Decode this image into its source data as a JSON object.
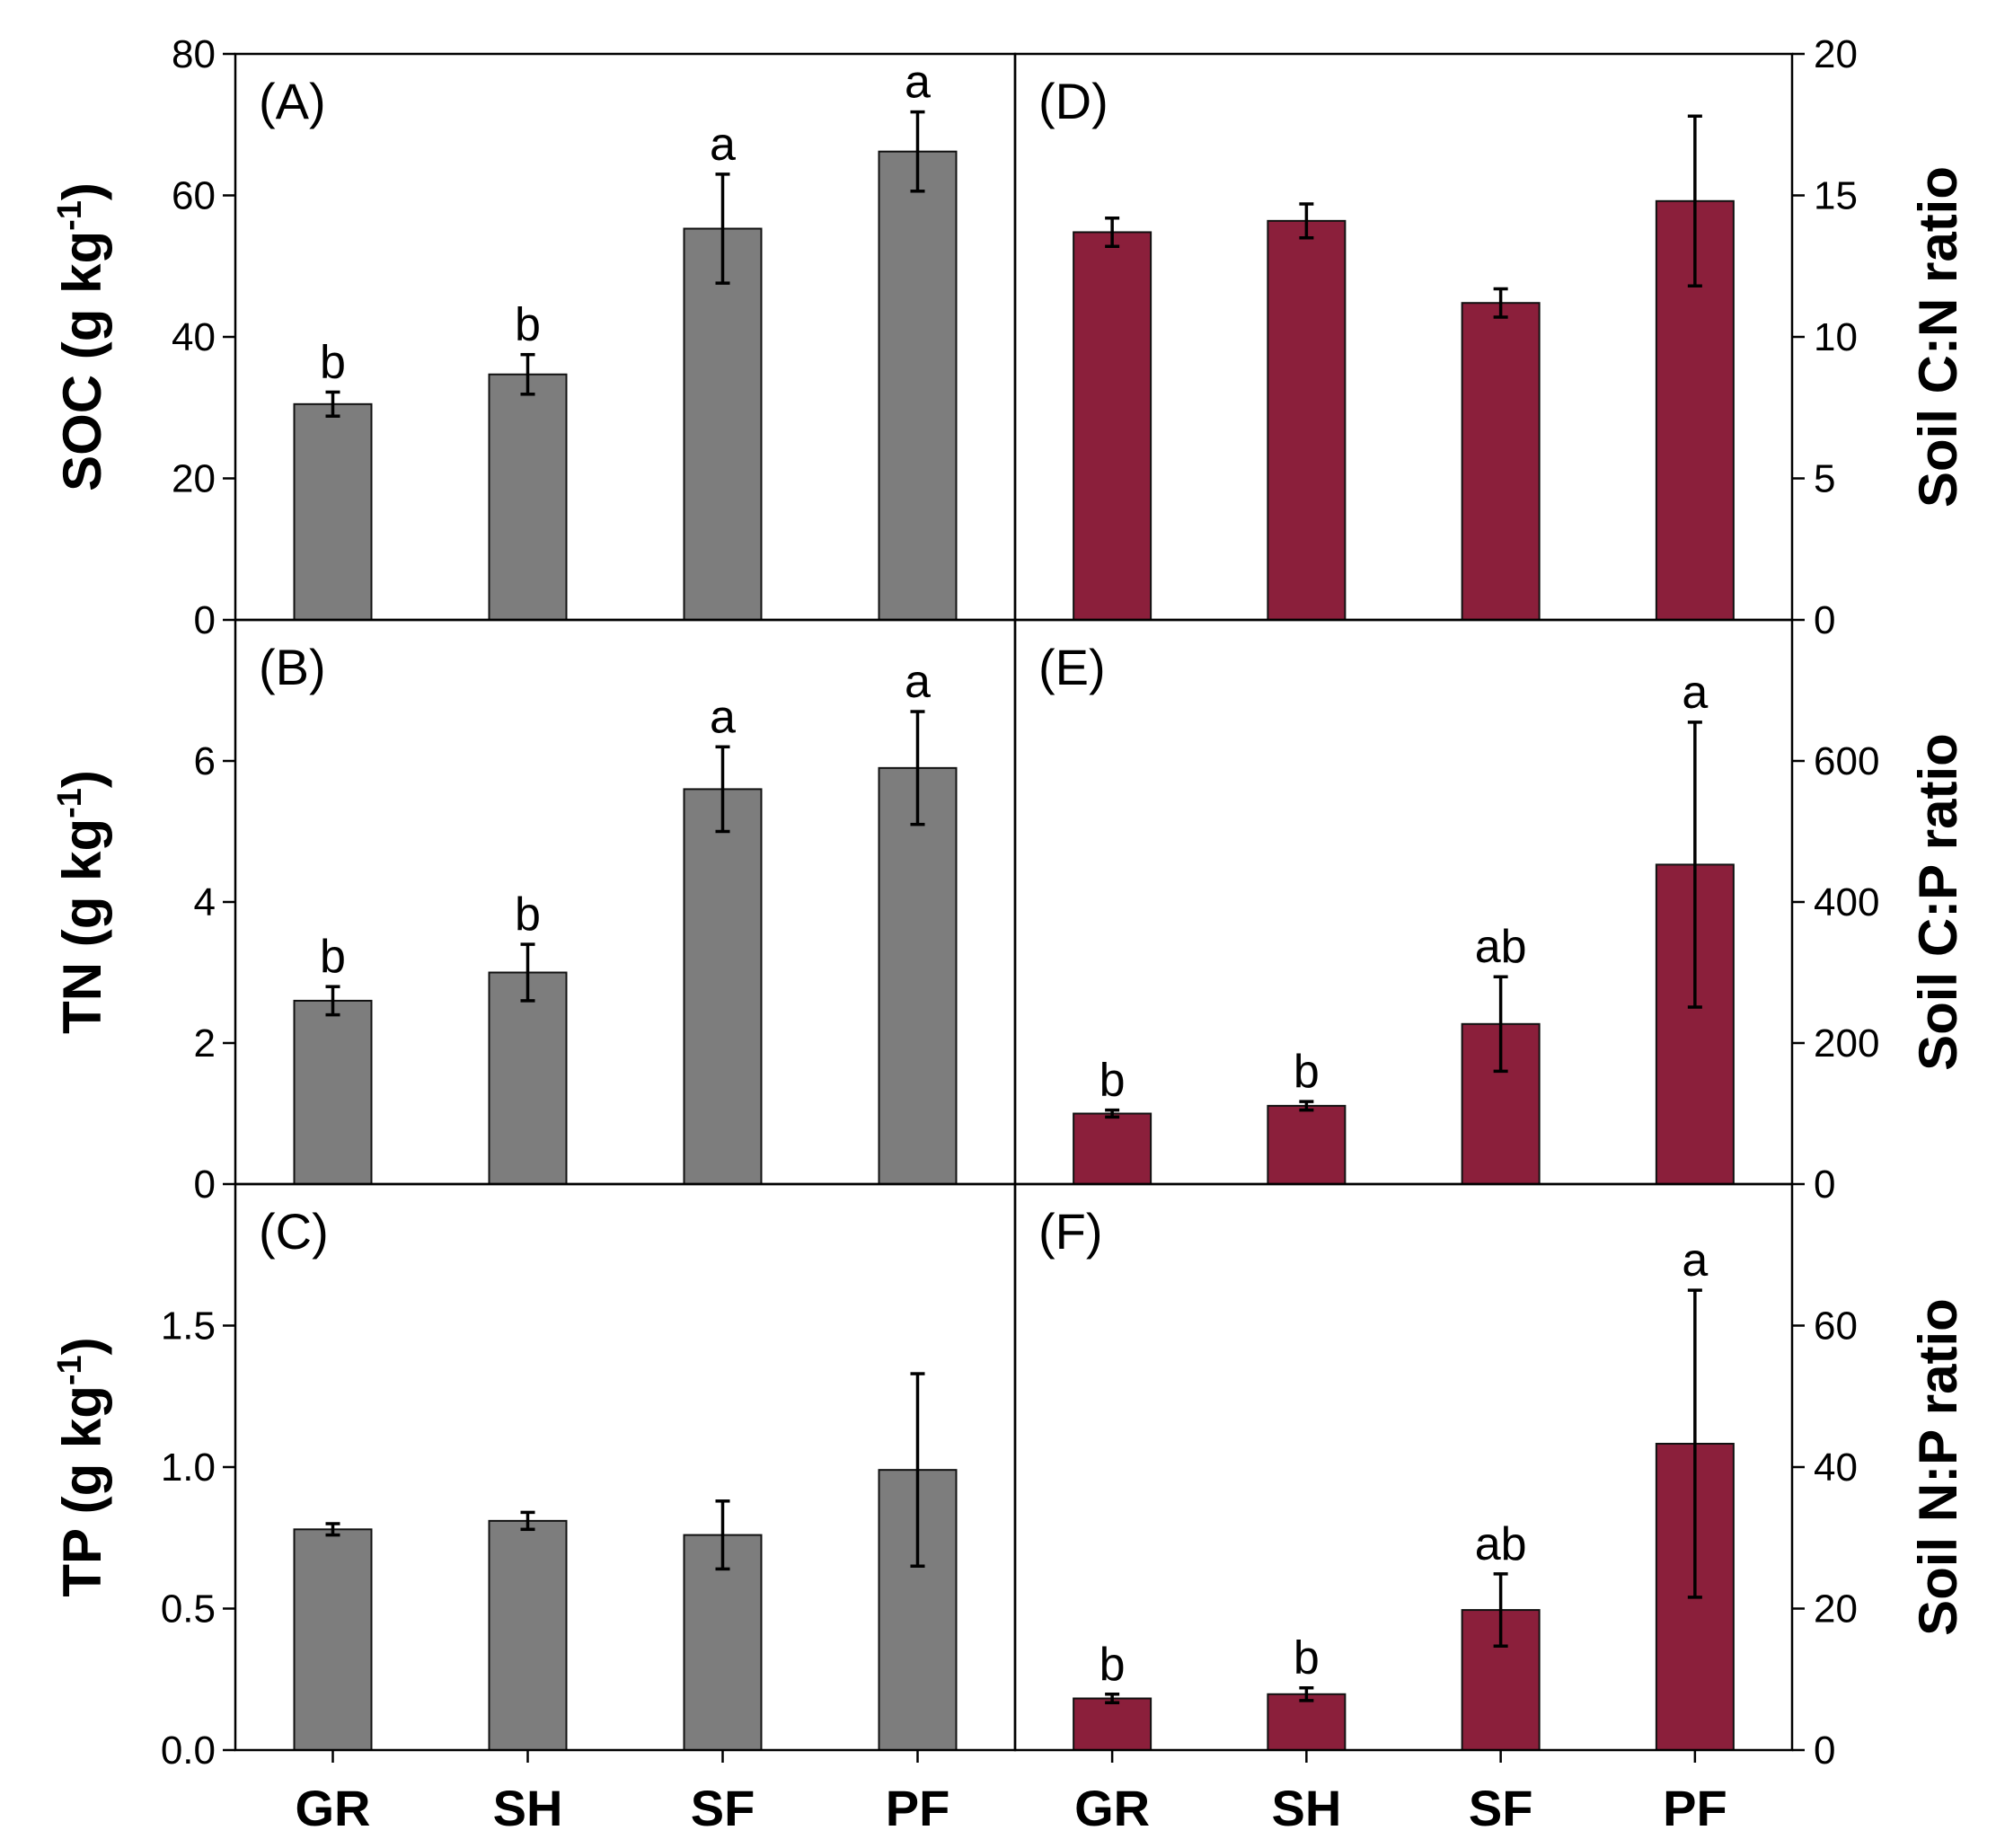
{
  "chart_data": [
    {
      "panel": "(A)",
      "type": "bar",
      "ylabel_main": "SOC (g kg",
      "ylabel_sup": "-1",
      "ylabel_close": ")",
      "ylim": [
        0,
        80
      ],
      "yticks": [
        "0",
        "20",
        "40",
        "60",
        "80"
      ],
      "categories": [
        "GR",
        "SH",
        "SF",
        "PF"
      ],
      "values": [
        30.5,
        34.7,
        55.3,
        66.2
      ],
      "errors": [
        1.7,
        2.8,
        7.7,
        5.6
      ],
      "letters": [
        "b",
        "b",
        "a",
        "a"
      ],
      "color": "#7d7d7d"
    },
    {
      "panel": "(B)",
      "type": "bar",
      "ylabel_main": "TN (g kg",
      "ylabel_sup": "-1",
      "ylabel_close": ")",
      "ylim": [
        0,
        8
      ],
      "yticks": [
        "0",
        "2",
        "4",
        "6"
      ],
      "categories": [
        "GR",
        "SH",
        "SF",
        "PF"
      ],
      "values": [
        2.6,
        3.0,
        5.6,
        5.9
      ],
      "errors": [
        0.2,
        0.4,
        0.6,
        0.8
      ],
      "letters": [
        "b",
        "b",
        "a",
        "a"
      ],
      "color": "#7d7d7d"
    },
    {
      "panel": "(C)",
      "type": "bar",
      "ylabel_main": "TP (g kg",
      "ylabel_sup": "-1",
      "ylabel_close": ")",
      "ylim": [
        0,
        2
      ],
      "yticks": [
        "0.0",
        "0.5",
        "1.0",
        "1.5"
      ],
      "categories": [
        "GR",
        "SH",
        "SF",
        "PF"
      ],
      "values": [
        0.78,
        0.81,
        0.76,
        0.99
      ],
      "errors": [
        0.02,
        0.03,
        0.12,
        0.34
      ],
      "letters": [
        "",
        "",
        "",
        ""
      ],
      "color": "#7d7d7d"
    },
    {
      "panel": "(D)",
      "type": "bar",
      "ylabel_main": "Soil C:N ratio",
      "ylim": [
        0,
        20
      ],
      "yticks": [
        "0",
        "5",
        "10",
        "15",
        "20"
      ],
      "categories": [
        "GR",
        "SH",
        "SF",
        "PF"
      ],
      "values": [
        13.7,
        14.1,
        11.2,
        14.8
      ],
      "errors": [
        0.5,
        0.6,
        0.5,
        3.0
      ],
      "letters": [
        "",
        "",
        "",
        ""
      ],
      "color": "#8b1f3b"
    },
    {
      "panel": "(E)",
      "type": "bar",
      "ylabel_main": "Soil C:P ratio",
      "ylim": [
        0,
        800
      ],
      "yticks": [
        "0",
        "200",
        "400",
        "600"
      ],
      "categories": [
        "GR",
        "SH",
        "SF",
        "PF"
      ],
      "values": [
        100,
        111,
        227,
        453
      ],
      "errors": [
        5,
        6,
        67,
        202
      ],
      "letters": [
        "b",
        "b",
        "ab",
        "a"
      ],
      "color": "#8b1f3b"
    },
    {
      "panel": "(F)",
      "type": "bar",
      "ylabel_main": "Soil N:P ratio",
      "ylim": [
        0,
        80
      ],
      "yticks": [
        "0",
        "20",
        "40",
        "60"
      ],
      "categories": [
        "GR",
        "SH",
        "SF",
        "PF"
      ],
      "values": [
        7.3,
        7.9,
        19.8,
        43.3
      ],
      "errors": [
        0.6,
        0.9,
        5.1,
        21.7
      ],
      "letters": [
        "b",
        "b",
        "ab",
        "a"
      ],
      "color": "#8b1f3b"
    }
  ]
}
